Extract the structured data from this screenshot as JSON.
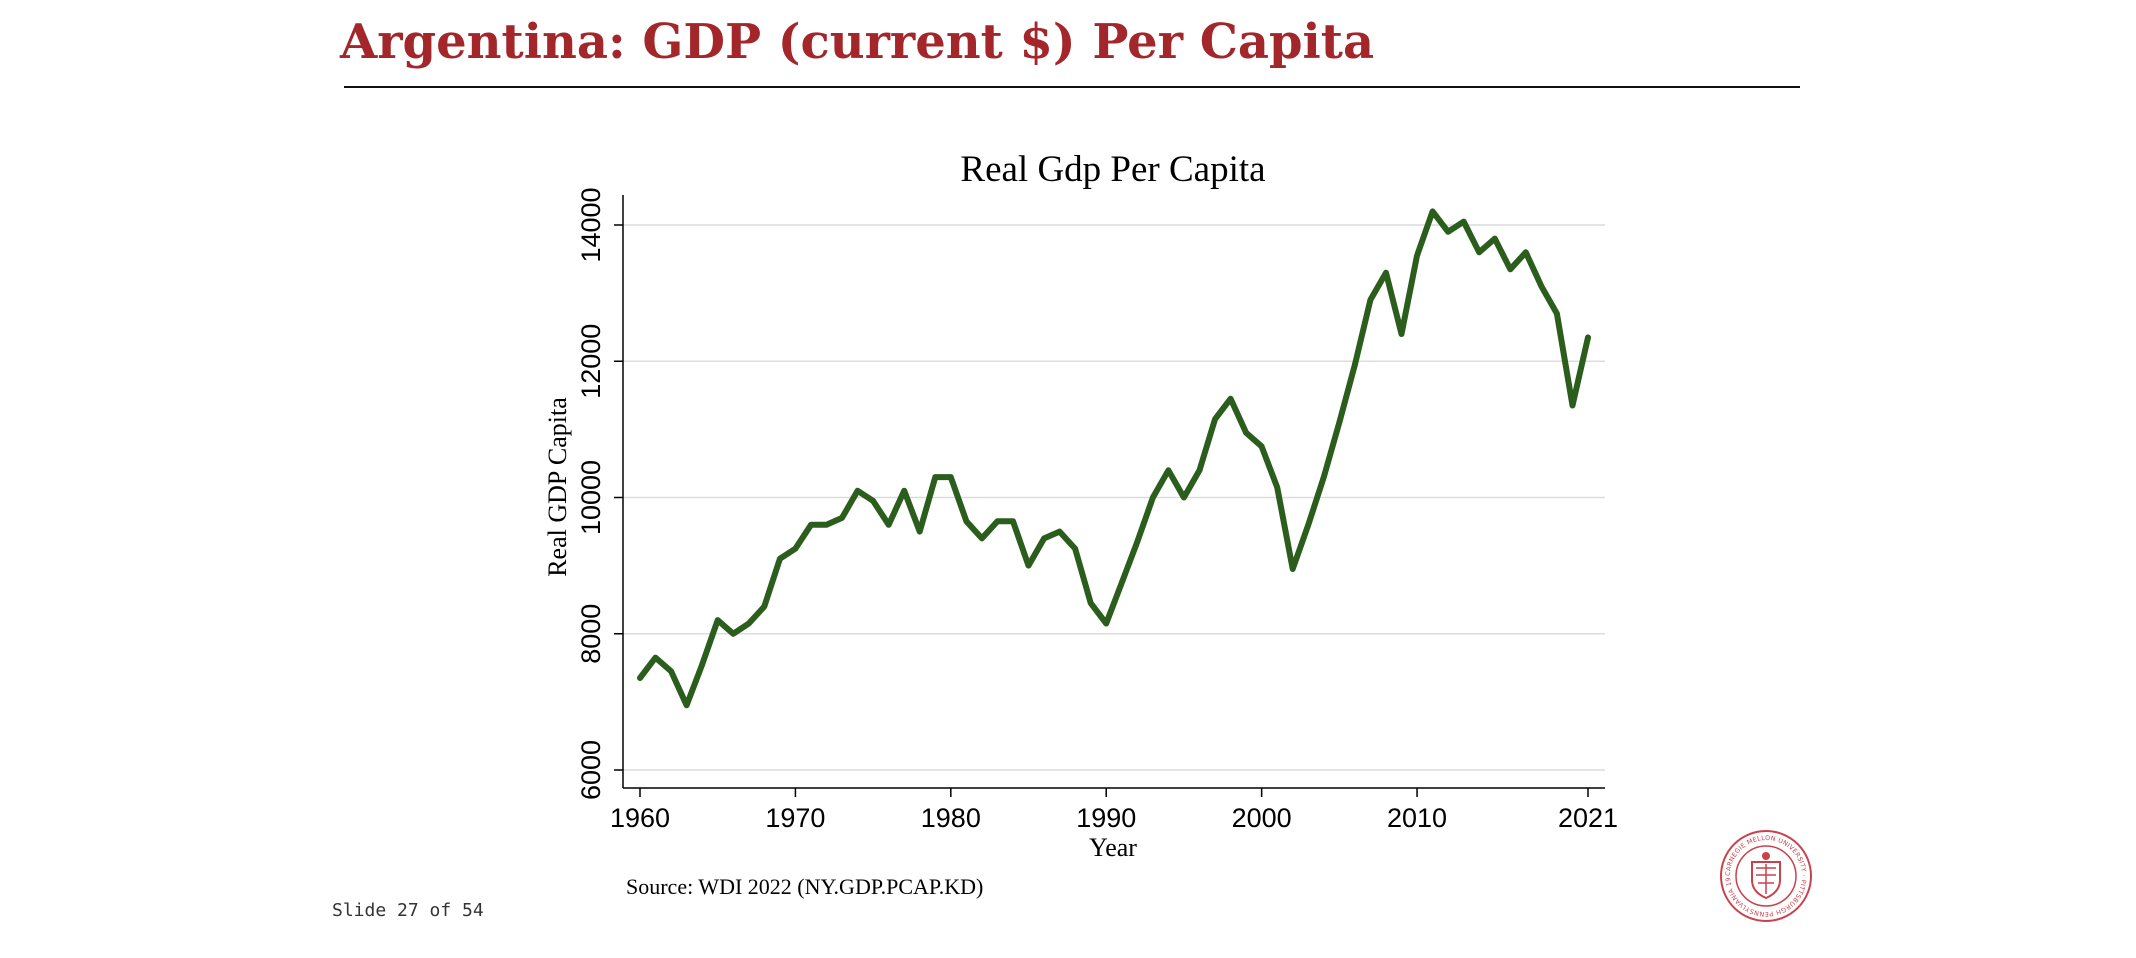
{
  "slide": {
    "title": "Argentina: GDP (current $) Per Capita",
    "footer": "Slide 27 of 54",
    "accent_color": "#a3262a",
    "logo": {
      "icon": "carnegie-mellon-seal-icon",
      "ring_text": "CARNEGIE MELLON UNIVERSITY · PITTSBURGH PENNSYLVANIA 1900 ·"
    }
  },
  "chart_data": {
    "type": "line",
    "title": "Real Gdp Per Capita",
    "xlabel": "Year",
    "ylabel": "Real GDP Capita",
    "source": "Source: WDI 2022 (NY.GDP.PCAP.KD)",
    "xlim": [
      1960,
      2021
    ],
    "ylim": [
      6000,
      14500
    ],
    "xticks": [
      1960,
      1970,
      1980,
      1990,
      2000,
      2010,
      2021
    ],
    "yticks": [
      6000,
      8000,
      10000,
      12000,
      14000
    ],
    "grid": true,
    "legend": "none",
    "line_color": "#2b5e1d",
    "series": [
      {
        "x": [
          1960,
          1961,
          1962,
          1963,
          1964,
          1965,
          1966,
          1967,
          1968,
          1969,
          1970,
          1971,
          1972,
          1973,
          1974,
          1975,
          1976,
          1977,
          1978,
          1979,
          1980,
          1981,
          1982,
          1983,
          1984,
          1985,
          1986,
          1987,
          1988,
          1989,
          1990,
          1991,
          1992,
          1993,
          1994,
          1995,
          1996,
          1997,
          1998,
          1999,
          2000,
          2001,
          2002,
          2003,
          2004,
          2005,
          2006,
          2007,
          2008,
          2009,
          2010,
          2011,
          2012,
          2013,
          2014,
          2015,
          2016,
          2017,
          2018,
          2019,
          2020,
          2021
        ],
        "values": [
          7350,
          7650,
          7450,
          6950,
          7550,
          8200,
          8000,
          8150,
          8400,
          9100,
          9250,
          9600,
          9600,
          9700,
          10100,
          9950,
          9600,
          10100,
          9500,
          10300,
          10300,
          9650,
          9400,
          9650,
          9650,
          9000,
          9400,
          9500,
          9250,
          8450,
          8150,
          8750,
          9350,
          10000,
          10400,
          10000,
          10400,
          11150,
          11450,
          10950,
          10750,
          10150,
          8950,
          9600,
          10300,
          11100,
          11950,
          12900,
          13300,
          12400,
          13550,
          14200,
          13900,
          14050,
          13600,
          13800,
          13350,
          13600,
          13100,
          12700,
          11350,
          12350
        ]
      }
    ]
  }
}
